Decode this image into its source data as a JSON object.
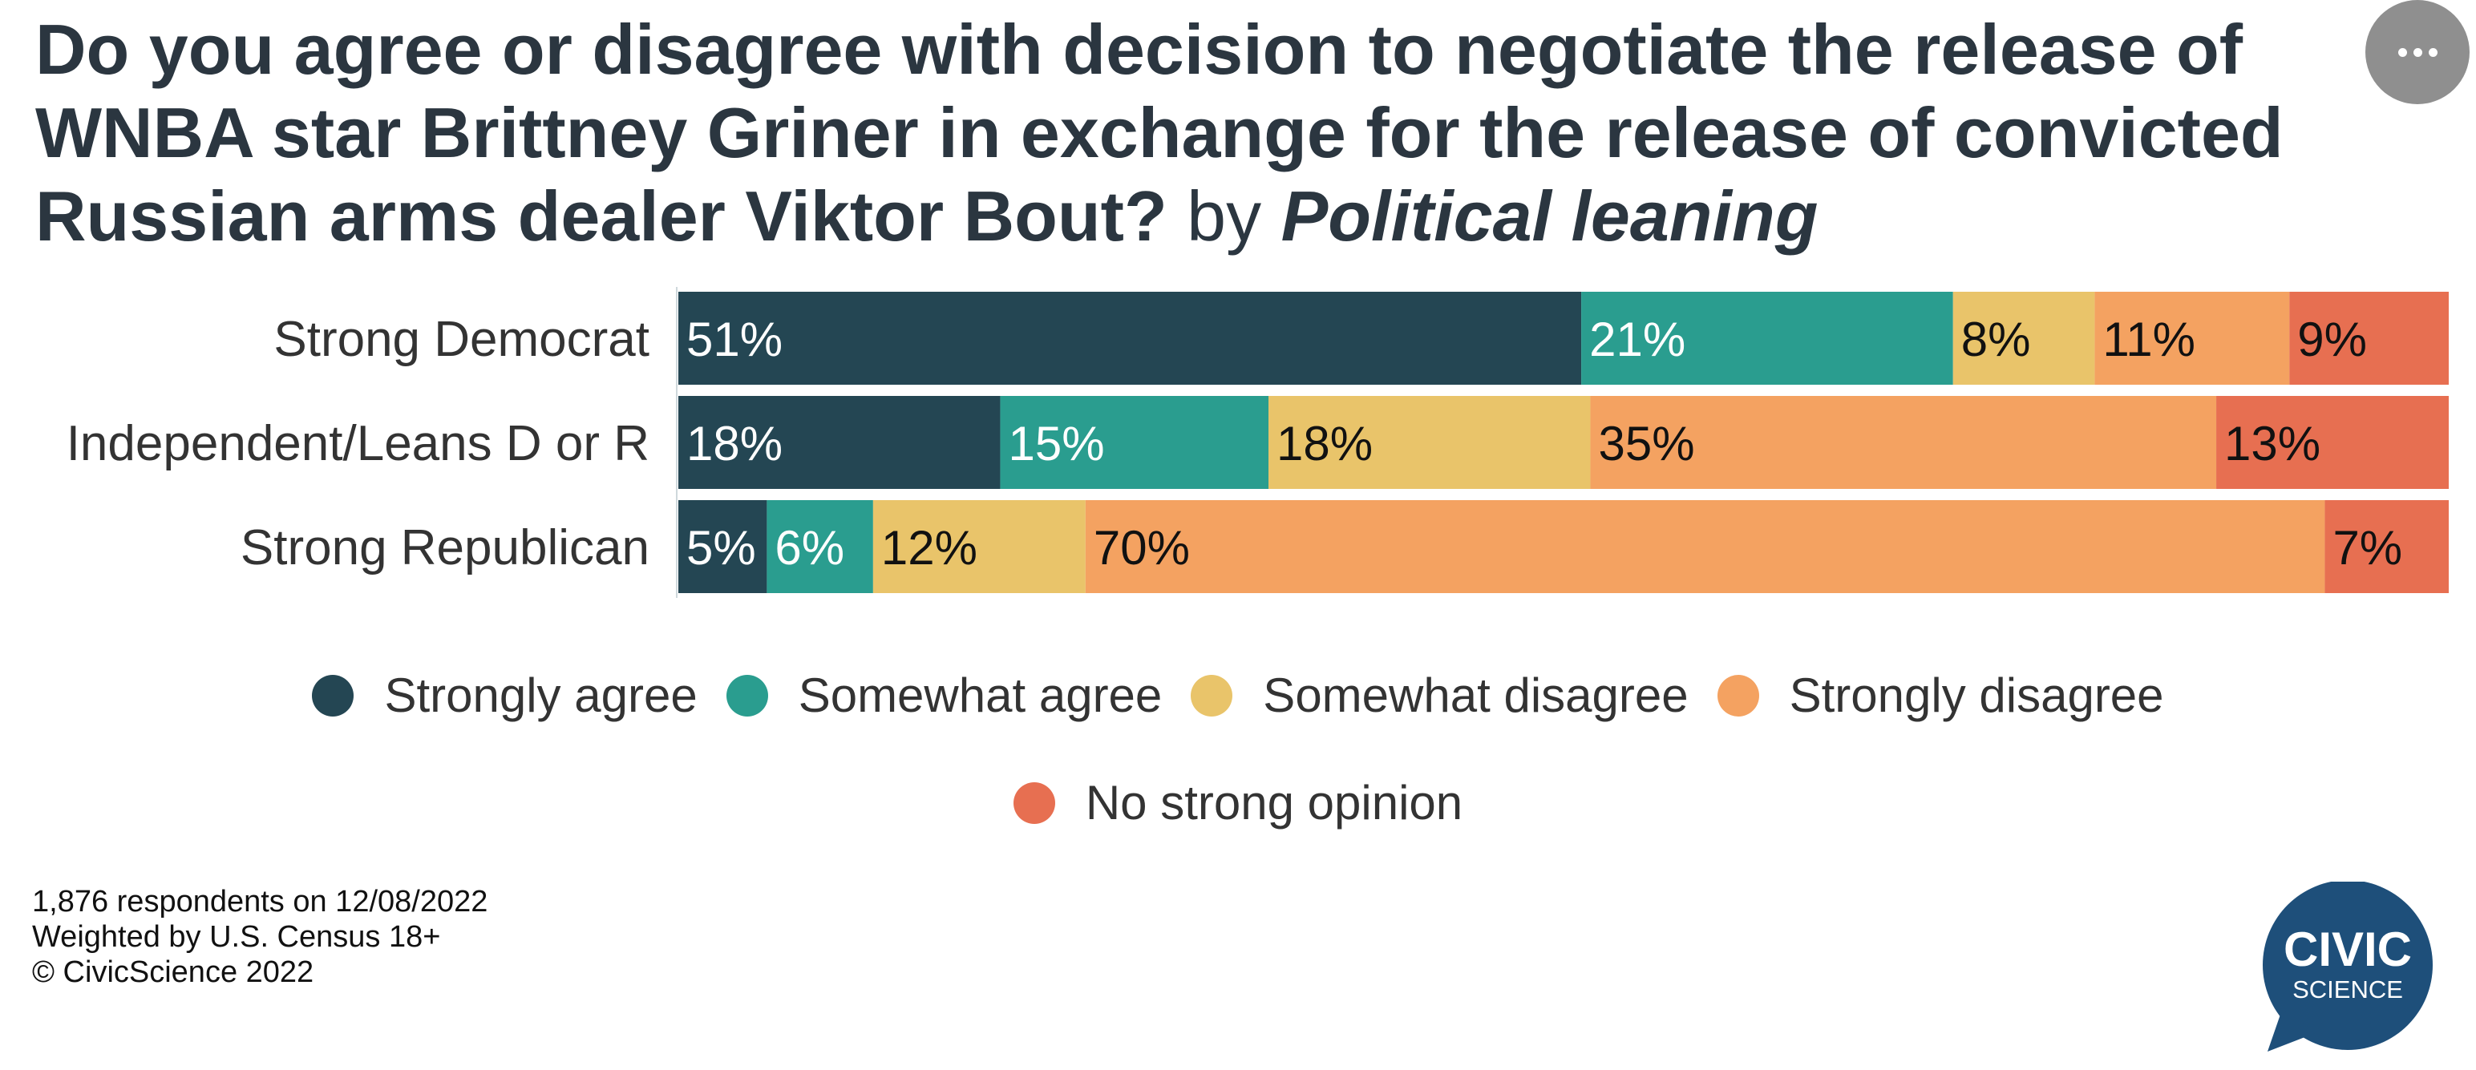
{
  "title": {
    "question": "Do you agree or disagree with decision to negotiate the release of WNBA star Brittney Griner in exchange for the release of convicted Russian arms dealer Viktor Bout?",
    "by": "by",
    "segment": "Political leaning"
  },
  "menu": {
    "icon": "more-horizontal-icon"
  },
  "chart_data": {
    "type": "bar",
    "orientation": "horizontal",
    "stacked": true,
    "normalized_to_percent": true,
    "categories": [
      "Strong Democrat",
      "Independent/Leans D or R",
      "Strong Republican"
    ],
    "series": [
      {
        "name": "Strongly agree",
        "color": "#244653",
        "label_color": "#ffffff",
        "values": [
          51,
          18,
          5
        ]
      },
      {
        "name": "Somewhat agree",
        "color": "#2a9d8f",
        "label_color": "#ffffff",
        "values": [
          21,
          15,
          6
        ]
      },
      {
        "name": "Somewhat disagree",
        "color": "#e9c46a",
        "label_color": "#111111",
        "values": [
          8,
          18,
          12
        ]
      },
      {
        "name": "Strongly disagree",
        "color": "#f4a261",
        "label_color": "#111111",
        "values": [
          11,
          35,
          70
        ]
      },
      {
        "name": "No strong opinion",
        "color": "#e76f51",
        "label_color": "#111111",
        "values": [
          9,
          13,
          7
        ]
      }
    ],
    "value_suffix": "%",
    "legend_position": "bottom",
    "grid": false
  },
  "footer": {
    "respondents": "1,876 respondents on 12/08/2022",
    "weighting": "Weighted by U.S. Census 18+",
    "copyright": "© CivicScience 2022"
  },
  "logo": {
    "line1": "CIVIC",
    "line2": "SCIENCE",
    "color": "#1e4f7a"
  }
}
